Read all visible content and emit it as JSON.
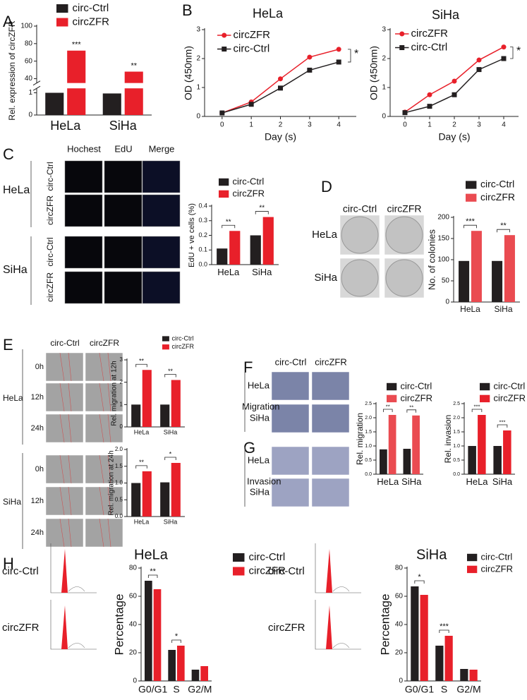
{
  "panel_labels": [
    "A",
    "B",
    "C",
    "D",
    "E",
    "F",
    "G",
    "H"
  ],
  "images": {
    "c": {
      "columns": [
        "Hochest",
        "EdU",
        "Merge"
      ],
      "rows": [
        "circ-Ctrl",
        "circZFR",
        "circ-Ctrl",
        "circZFR"
      ],
      "groups": [
        "HeLa",
        "SiHa"
      ]
    },
    "d": {
      "columns": [
        "circ-Ctrl",
        "circZFR"
      ],
      "rows": [
        "HeLa",
        "SiHa"
      ]
    },
    "e": {
      "columns": [
        "circ-Ctrl",
        "circZFR"
      ],
      "rows": [
        "0h",
        "12h",
        "24h",
        "0h",
        "12h",
        "24h"
      ],
      "groups": [
        "HeLa",
        "SiHa"
      ]
    },
    "fg": {
      "columns": [
        "circ-Ctrl",
        "circZFR"
      ],
      "rows": [
        "HeLa",
        "SiHa",
        "HeLa",
        "SiHa"
      ],
      "groups": [
        "Migration",
        "Invasion"
      ]
    },
    "h": {
      "rows": [
        "circ-Ctrl",
        "circZFR",
        "circ-Ctrl",
        "circZFR"
      ]
    }
  },
  "chart_data": [
    {
      "type": "bar",
      "ylabel": "Rel. expression of circZFR",
      "categories": [
        "HeLa",
        "SiHa"
      ],
      "series": [
        {
          "name": "circ-Ctrl",
          "color": "#231f20",
          "values": [
            1.0,
            0.97
          ]
        },
        {
          "name": "circZFR",
          "color": "#e8202a",
          "values": [
            72,
            48
          ]
        }
      ],
      "ylim": [
        0,
        100
      ],
      "ybreak": [
        1.2,
        35
      ],
      "yticks": [
        0,
        1,
        40,
        60,
        80,
        100
      ],
      "significance": [
        "***",
        "**"
      ],
      "sig_bracket": false
    },
    {
      "type": "line",
      "title": "HeLa",
      "xlabel": "Day (s)",
      "ylabel": "OD (450nm)",
      "x": [
        0,
        1,
        2,
        3,
        4
      ],
      "series": [
        {
          "name": "circZFR",
          "color": "#e8202a",
          "marker": "circle",
          "values": [
            0.12,
            0.5,
            1.3,
            2.05,
            2.32
          ]
        },
        {
          "name": "circ-Ctrl",
          "color": "#231f20",
          "marker": "square",
          "values": [
            0.12,
            0.42,
            0.98,
            1.6,
            1.88
          ]
        }
      ],
      "xlim": [
        -0.6,
        4.6
      ],
      "xticks": [
        0,
        1,
        2,
        3,
        4
      ],
      "ylim": [
        0,
        3
      ],
      "yticks": [
        0,
        1,
        2,
        3
      ],
      "annotation": "*"
    },
    {
      "type": "line",
      "title": "SiHa",
      "xlabel": "Day (s)",
      "ylabel": "OD (450nm)",
      "x": [
        0,
        1,
        2,
        3,
        4
      ],
      "series": [
        {
          "name": "circZFR",
          "color": "#e8202a",
          "marker": "circle",
          "values": [
            0.15,
            0.75,
            1.22,
            1.95,
            2.4
          ]
        },
        {
          "name": "circ-Ctrl",
          "color": "#231f20",
          "marker": "square",
          "values": [
            0.13,
            0.35,
            0.75,
            1.62,
            2.0
          ]
        }
      ],
      "xlim": [
        -0.6,
        4.6
      ],
      "xticks": [
        0,
        1,
        2,
        3,
        4
      ],
      "ylim": [
        0,
        3
      ],
      "yticks": [
        0,
        1,
        2,
        3
      ],
      "annotation": "*"
    },
    {
      "type": "bar",
      "ylabel": "EdU + ve cells (%)",
      "categories": [
        "HeLa",
        "SiHa"
      ],
      "series": [
        {
          "name": "circ-Ctrl",
          "color": "#231f20",
          "values": [
            0.11,
            0.2
          ]
        },
        {
          "name": "circZFR",
          "color": "#e8202a",
          "values": [
            0.23,
            0.325
          ]
        }
      ],
      "ylim": [
        0,
        0.4
      ],
      "yticks": [
        {
          "value": 0,
          "label": "0.0"
        },
        0.1,
        0.2,
        0.3,
        0.4
      ],
      "significance": [
        "**",
        "**"
      ],
      "sig_bracket": true
    },
    {
      "type": "bar",
      "ylabel": "No. of colonies",
      "categories": [
        "HeLa",
        "SiHa"
      ],
      "series": [
        {
          "name": "circ-Ctrl",
          "color": "#231f20",
          "values": [
            97,
            97
          ]
        },
        {
          "name": "circZFR",
          "color": "#ea4b51",
          "values": [
            168,
            158
          ]
        }
      ],
      "ylim": [
        0,
        200
      ],
      "yticks": [
        0,
        50,
        100,
        150,
        200
      ],
      "significance": [
        "***",
        "**"
      ],
      "sig_bracket": true
    },
    {
      "type": "bar",
      "ylabel": "Rel. migration at 12h",
      "categories": [
        "HeLa",
        "SiHa"
      ],
      "series": [
        {
          "name": "circ-Ctrl",
          "color": "#231f20",
          "values": [
            1.0,
            1.0
          ]
        },
        {
          "name": "circZFR",
          "color": "#e8202a",
          "values": [
            2.55,
            2.1
          ]
        }
      ],
      "ylim": [
        0,
        3
      ],
      "yticks": [
        0,
        1,
        2,
        3
      ],
      "significance": [
        "**",
        "**"
      ],
      "sig_bracket": true
    },
    {
      "type": "bar",
      "ylabel": "Rel. migration at 24h",
      "categories": [
        "HeLa",
        "SiHa"
      ],
      "series": [
        {
          "color": "#231f20",
          "values": [
            1.0,
            1.02
          ]
        },
        {
          "color": "#e8202a",
          "values": [
            1.35,
            1.6
          ]
        }
      ],
      "ylim": [
        0,
        2
      ],
      "yticks": [
        {
          "value": 0,
          "label": "0.0"
        },
        0.5,
        {
          "value": 1,
          "label": "1.0"
        },
        1.5,
        {
          "value": 2,
          "label": "2.0"
        }
      ],
      "significance": [
        "**",
        "*"
      ],
      "sig_bracket": true
    },
    {
      "type": "bar",
      "ylabel": "Rel. migration",
      "categories": [
        "HeLa",
        "SiHa"
      ],
      "series": [
        {
          "name": "circ-Ctrl",
          "color": "#231f20",
          "values": [
            0.88,
            0.9
          ]
        },
        {
          "name": "circZFR",
          "color": "#ea4b51",
          "values": [
            2.1,
            2.08
          ]
        }
      ],
      "ylim": [
        0,
        2.5
      ],
      "yticks": [
        {
          "value": 0,
          "label": "0.0"
        },
        0.5,
        {
          "value": 1,
          "label": "1.0"
        },
        1.5,
        {
          "value": 2,
          "label": "2.0"
        },
        2.5
      ],
      "significance": [
        "**",
        "**"
      ],
      "sig_bracket": true
    },
    {
      "type": "bar",
      "ylabel": "Rel. invasion",
      "categories": [
        "HeLa",
        "SiHa"
      ],
      "series": [
        {
          "name": "circ-Ctrl",
          "color": "#231f20",
          "values": [
            1.0,
            1.0
          ]
        },
        {
          "name": "circZFR",
          "color": "#e8202a",
          "values": [
            2.1,
            1.55
          ]
        }
      ],
      "ylim": [
        0,
        2.5
      ],
      "yticks": [
        {
          "value": 0,
          "label": "0.0"
        },
        0.5,
        {
          "value": 1,
          "label": "1.0"
        },
        1.5,
        {
          "value": 2,
          "label": "2.0"
        },
        2.5
      ],
      "significance": [
        "***",
        "***"
      ],
      "sig_bracket": true
    },
    {
      "type": "bar",
      "title": "HeLa",
      "ylabel": "Percentage",
      "categories": [
        "G0/G1",
        "S",
        "G2/M"
      ],
      "series": [
        {
          "name": "circ-Ctrl",
          "color": "#231f20",
          "values": [
            71,
            22,
            8
          ]
        },
        {
          "name": "circZFR",
          "color": "#e8202a",
          "values": [
            65,
            25,
            10.5
          ]
        }
      ],
      "ylim": [
        0,
        80
      ],
      "yticks": [
        0,
        20,
        40,
        60,
        80
      ],
      "significance": [
        "**",
        "*",
        null
      ],
      "sig_bracket": true
    },
    {
      "type": "bar",
      "title": "SiHa",
      "ylabel": "Percentage",
      "categories": [
        "G0/G1",
        "S",
        "G2/M"
      ],
      "series": [
        {
          "name": "circ-Ctrl",
          "color": "#231f20",
          "values": [
            67,
            25,
            8.5
          ]
        },
        {
          "name": "circZFR",
          "color": "#e8202a",
          "values": [
            61,
            32,
            8
          ]
        }
      ],
      "ylim": [
        0,
        80
      ],
      "yticks": [
        0,
        20,
        40,
        60,
        80
      ],
      "significance": [
        "*",
        "***",
        null
      ],
      "sig_bracket": true
    }
  ]
}
